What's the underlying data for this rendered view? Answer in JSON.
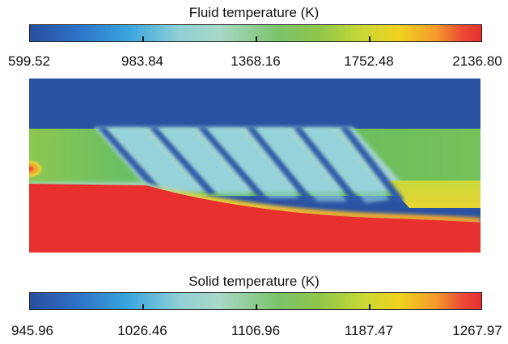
{
  "fluid_colorbar": {
    "title": "Fluid temperature (K)",
    "tick_labels": [
      "599.52",
      "983.84",
      "1368.16",
      "1752.48",
      "2136.80"
    ]
  },
  "solid_colorbar": {
    "title": "Solid temperature (K)",
    "tick_labels": [
      "945.96",
      "1026.46",
      "1106.96",
      "1187.47",
      "1267.97"
    ]
  },
  "colors": {
    "cold": "#2a52a3",
    "cool": "#a3d6d2",
    "mid": "#7cc36b",
    "warm": "#e8d534",
    "hot": "#e8302f"
  }
}
